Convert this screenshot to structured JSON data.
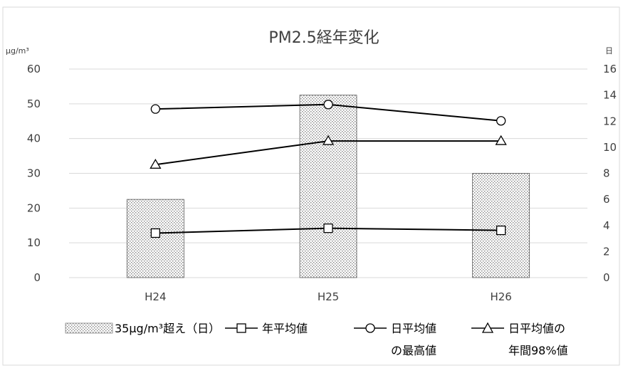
{
  "chart_data": {
    "type": "bar",
    "title": "PM2.5経年変化",
    "categories": [
      "H24",
      "H25",
      "H26"
    ],
    "left_axis": {
      "unit": "μg/m³",
      "ylim": [
        0,
        60
      ],
      "ticks": [
        "0",
        "10",
        "20",
        "30",
        "40",
        "50",
        "60"
      ]
    },
    "right_axis": {
      "unit": "日",
      "ylim": [
        0,
        16
      ],
      "ticks": [
        "0",
        "2",
        "4",
        "6",
        "8",
        "10",
        "12",
        "14",
        "16"
      ]
    },
    "series": [
      {
        "name": "35μg/m³超え（日）",
        "kind": "bar",
        "axis": "right",
        "values": [
          6,
          14,
          8
        ],
        "pattern": "dotted"
      },
      {
        "name": "年平均値",
        "kind": "line",
        "axis": "left",
        "marker": "square",
        "values": [
          12.8,
          14.2,
          13.6
        ]
      },
      {
        "name": "日平均値の最高値",
        "kind": "line",
        "axis": "left",
        "marker": "circle",
        "values": [
          48.5,
          49.8,
          45.1
        ]
      },
      {
        "name": "日平均値の年間98%値",
        "kind": "line",
        "axis": "left",
        "marker": "triangle",
        "values": [
          32.5,
          39.3,
          39.3
        ]
      }
    ],
    "grid": true,
    "legend_position": "bottom"
  },
  "legend": {
    "bar_label": "35μg/m³超え（日）",
    "annual_mean_label": "年平均値",
    "daily_max_label_line1": "日平均値",
    "daily_max_label_line2": "の最高値",
    "p98_label_line1": "日平均値の",
    "p98_label_line2": "年間98%値"
  },
  "colors": {
    "line": "#000000",
    "grid": "#d9d9d9",
    "text": "#404040",
    "bar_fill": "#ffffff",
    "bar_dot": "#7f7f7f"
  }
}
